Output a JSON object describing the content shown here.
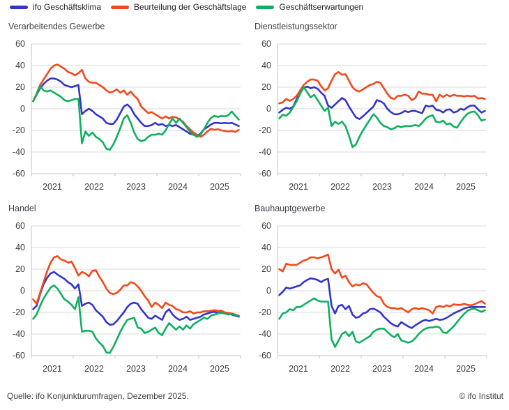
{
  "legend": {
    "items": [
      {
        "label": "ifo Geschäftsklima",
        "color": "#3434cb"
      },
      {
        "label": "Beurteilung der Geschäftslage",
        "color": "#f2491c"
      },
      {
        "label": "Geschäftserwartungen",
        "color": "#0eb05f"
      }
    ]
  },
  "footer": {
    "source": "Quelle: ifo Konjunkturumfragen, Dezember 2025.",
    "copyright": "© ifo Institut"
  },
  "chart_data": {
    "type": "line",
    "x_unit": "month",
    "x_start": "2021-01",
    "x_end": "2025-12",
    "x_tick_years": [
      2021,
      2022,
      2023,
      2024,
      2025
    ],
    "x_axis_end": "2026-01",
    "ylim": [
      -60,
      60
    ],
    "y_ticks": [
      60,
      40,
      20,
      0,
      -20,
      -40,
      -60
    ],
    "grid": true,
    "legend_position": "top",
    "style": {
      "grid_color": "#d7d9de",
      "axis_color": "#c2c5cc",
      "line_width": 2.6
    },
    "charts": [
      {
        "title": "Verarbeitendes Gewerbe",
        "series": [
          {
            "name": "ifo Geschäftsklima",
            "values": [
              7,
              13,
              19,
              23,
              26,
              28,
              28,
              27,
              25,
              22,
              21,
              20,
              21,
              22,
              -5,
              -2,
              0,
              -2,
              -5,
              -7,
              -9,
              -13,
              -14,
              -14,
              -10,
              -4,
              2,
              4,
              1,
              -5,
              -9,
              -13,
              -16,
              -16,
              -15,
              -13,
              -15,
              -14,
              -16,
              -15,
              -16,
              -15,
              -17,
              -19,
              -21,
              -23,
              -24,
              -25,
              -23,
              -19,
              -17,
              -14.5,
              -13,
              -13,
              -13.5,
              -13,
              -13.5,
              -13,
              -14.5,
              -16
            ]
          },
          {
            "name": "Beurteilung der Geschäftslage",
            "values": [
              7,
              14,
              22,
              27,
              32,
              37,
              40,
              41,
              39,
              37,
              34,
              33,
              31,
              33,
              36,
              28,
              25,
              24,
              24,
              22,
              20,
              17,
              15,
              16,
              18,
              15,
              17,
              13,
              16,
              12,
              9,
              2,
              -1,
              -4,
              -3,
              -5,
              -7,
              -9,
              -7,
              -9,
              -7.5,
              -8,
              -10,
              -12,
              -16,
              -19,
              -22,
              -24,
              -26,
              -24,
              -21,
              -18.5,
              -19.5,
              -19,
              -20,
              -20.5,
              -21,
              -20.5,
              -21.5,
              -19.5
            ]
          },
          {
            "name": "Geschäftserwartungen",
            "values": [
              7,
              13,
              21,
              17,
              16,
              17,
              15,
              13,
              11,
              8,
              7,
              8,
              9,
              9,
              -32,
              -21,
              -25,
              -22,
              -26,
              -28,
              -31,
              -37,
              -38,
              -33,
              -26,
              -18,
              -9,
              -6,
              -13,
              -22,
              -28,
              -30,
              -29,
              -26,
              -24,
              -24,
              -23,
              -24,
              -20,
              -14,
              -9,
              -13,
              -9,
              -13,
              -17,
              -21,
              -24,
              -26,
              -24,
              -19,
              -13,
              -8.5,
              -6.5,
              -7.5,
              -6.5,
              -7,
              -6,
              -2.5,
              -6.5,
              -10
            ]
          }
        ]
      },
      {
        "title": "Dienstleistungssektor",
        "series": [
          {
            "name": "ifo Geschäftsklima",
            "values": [
              -3.5,
              -1,
              1,
              0,
              2,
              9,
              14.5,
              19.5,
              20.5,
              19,
              20,
              18.5,
              15,
              12,
              3,
              1,
              4,
              7,
              10,
              8,
              2,
              -3,
              -8,
              -9.5,
              -7,
              -4,
              -1,
              2,
              8,
              7,
              5,
              0,
              -3,
              -5,
              -5,
              -4,
              -2,
              -3,
              -2,
              -2,
              -3,
              -4,
              3,
              2,
              3,
              -1,
              -1.5,
              -3.5,
              -1,
              -0.5,
              -3.5,
              -2.5,
              0,
              -1,
              1.5,
              3,
              3,
              -0.5,
              -3.5,
              -2
            ]
          },
          {
            "name": "Beurteilung der Geschäftslage",
            "values": [
              5,
              6,
              9,
              7.5,
              9,
              12,
              17,
              22,
              25,
              27,
              27,
              26,
              21,
              17,
              19,
              26,
              32,
              34,
              31.5,
              32,
              26,
              20,
              17,
              16,
              18,
              20,
              22,
              23,
              25,
              24,
              19,
              14,
              10,
              9,
              12,
              12,
              13,
              12,
              8,
              10,
              16,
              14,
              14,
              13,
              13,
              7,
              13,
              11,
              13,
              11.5,
              13,
              12,
              12,
              11.5,
              12,
              11.5,
              12,
              9.5,
              10,
              9
            ]
          },
          {
            "name": "Geschäftserwartungen",
            "values": [
              -9,
              -5.5,
              -6.5,
              -3.5,
              1.5,
              7,
              14,
              20,
              15.5,
              10.5,
              13,
              8,
              3,
              -2,
              1,
              -16,
              -12,
              -14,
              -12,
              -16,
              -25,
              -35.5,
              -33,
              -26,
              -20,
              -15,
              -10,
              -5,
              -8,
              -13,
              -16,
              -17,
              -19,
              -18,
              -16,
              -17,
              -16,
              -16,
              -16,
              -15,
              -16,
              -13,
              -9,
              -7,
              -6,
              -12,
              -12.5,
              -11,
              -14.5,
              -13.5,
              -16.5,
              -17.5,
              -12.5,
              -8,
              -4.5,
              -3,
              -2.5,
              -6,
              -11,
              -10
            ]
          }
        ]
      },
      {
        "title": "Handel",
        "series": [
          {
            "name": "ifo Geschäftsklima",
            "values": [
              -17,
              -14,
              -3,
              6,
              12,
              16,
              17.5,
              15,
              13,
              11,
              8,
              6,
              2,
              6,
              -14,
              -12,
              -11,
              -13,
              -18,
              -21,
              -24,
              -29,
              -31.5,
              -31,
              -28,
              -24,
              -20,
              -15,
              -12,
              -11,
              -12,
              -17,
              -21,
              -25,
              -26,
              -23,
              -25,
              -27,
              -20,
              -17,
              -22,
              -25,
              -27,
              -26,
              -24,
              -27,
              -26,
              -25,
              -24,
              -22,
              -21,
              -20,
              -19.5,
              -20.5,
              -20,
              -21,
              -21,
              -22,
              -23,
              -24
            ]
          },
          {
            "name": "Beurteilung der Geschäftslage",
            "values": [
              -8,
              -12,
              -2,
              8,
              18,
              26,
              31,
              32,
              29,
              28,
              26,
              27,
              21,
              14,
              17.5,
              16,
              13.5,
              18.5,
              19,
              13,
              8,
              2,
              -2,
              -3,
              -2,
              1,
              5,
              5,
              8,
              7,
              4,
              0,
              -5,
              -9,
              -15,
              -11,
              -13,
              -16,
              -11,
              -13,
              -14,
              -17,
              -18,
              -20,
              -20,
              -19,
              -21,
              -20,
              -20,
              -19,
              -19,
              -18.5,
              -18,
              -18.5,
              -18.5,
              -20,
              -20.5,
              -21,
              -22,
              -23
            ]
          },
          {
            "name": "Geschäftserwartungen",
            "values": [
              -26,
              -22,
              -14,
              -7,
              -2,
              3,
              5,
              2,
              -3,
              -8,
              -10,
              -13,
              -17,
              -6,
              -38,
              -37,
              -37,
              -38,
              -44,
              -48,
              -51,
              -57,
              -57.5,
              -52,
              -45,
              -38,
              -32,
              -27,
              -26,
              -25,
              -34,
              -35,
              -39,
              -38,
              -36,
              -34,
              -39,
              -41,
              -35,
              -30,
              -33,
              -36,
              -33,
              -36,
              -32,
              -35,
              -31,
              -29,
              -27,
              -25,
              -26,
              -23,
              -22,
              -21,
              -20.5,
              -21,
              -22,
              -21.5,
              -22.5,
              -23.5
            ]
          }
        ]
      },
      {
        "title": "Bauhauptgewerbe",
        "series": [
          {
            "name": "ifo Geschäftsklima",
            "values": [
              -4,
              -1,
              3,
              2,
              3,
              4,
              5,
              8,
              10,
              11.5,
              11,
              10,
              8,
              10,
              11,
              -14,
              -21,
              -14,
              -13,
              -17,
              -14,
              -22,
              -25,
              -24,
              -21,
              -20,
              -17,
              -16.5,
              -18,
              -20,
              -24,
              -27,
              -30,
              -32,
              -33,
              -29,
              -31,
              -33,
              -34.5,
              -32,
              -30,
              -28,
              -27,
              -28,
              -27,
              -26,
              -27,
              -26.5,
              -25,
              -23,
              -21,
              -19.5,
              -18,
              -16.5,
              -15.5,
              -15,
              -15,
              -15,
              -15,
              -15
            ]
          },
          {
            "name": "Beurteilung der Geschäftslage",
            "values": [
              20,
              18,
              25,
              24,
              24,
              24,
              26,
              28,
              29,
              31,
              31,
              30,
              31,
              32,
              33.5,
              20,
              16,
              19.5,
              12,
              14,
              8,
              4,
              6,
              5,
              7,
              6,
              2,
              -2,
              -5,
              -6,
              -12,
              -15,
              -16,
              -16,
              -17,
              -16,
              -18,
              -20,
              -17,
              -16,
              -17,
              -16,
              -17,
              -18,
              -21,
              -15,
              -14,
              -15,
              -13.5,
              -14.5,
              -12.5,
              -13,
              -13,
              -12,
              -13,
              -13.5,
              -12.5,
              -11,
              -9.5,
              -12
            ]
          },
          {
            "name": "Geschäftserwartungen",
            "values": [
              -26,
              -21,
              -20,
              -17,
              -18,
              -15,
              -15,
              -13,
              -11,
              -9,
              -7,
              -9,
              -10,
              -10,
              -10,
              -45,
              -52,
              -46,
              -40,
              -38,
              -42,
              -38,
              -47,
              -48,
              -46,
              -44,
              -42,
              -38,
              -36,
              -35,
              -35,
              -38,
              -41,
              -43,
              -40,
              -46,
              -47,
              -48,
              -47,
              -44,
              -40,
              -37,
              -35,
              -34,
              -34,
              -33,
              -34,
              -38.5,
              -39,
              -36,
              -33,
              -29,
              -25,
              -21.5,
              -18.5,
              -17,
              -16.5,
              -18,
              -19.5,
              -18
            ]
          }
        ]
      }
    ]
  }
}
